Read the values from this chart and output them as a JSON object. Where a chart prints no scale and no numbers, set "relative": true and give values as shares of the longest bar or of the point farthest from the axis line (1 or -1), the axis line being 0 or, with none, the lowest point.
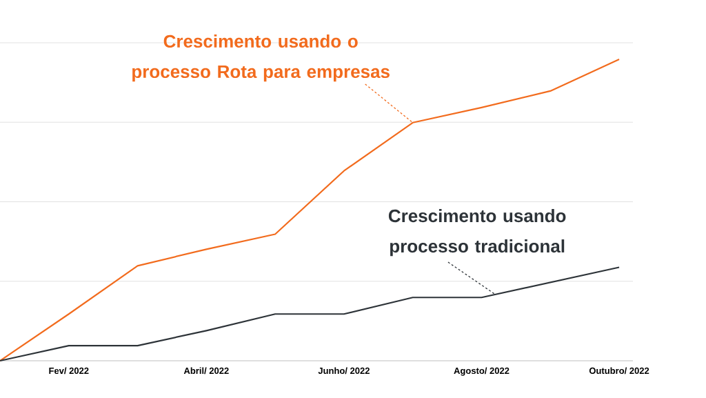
{
  "chart_data": {
    "type": "line",
    "relative": true,
    "grid": "y",
    "categories": [
      null,
      "Fev/ 2022",
      null,
      "Abril/ 2022",
      null,
      "Junho/ 2022",
      null,
      "Agosto/ 2022",
      null,
      "Outubro/ 2022"
    ],
    "series": [
      {
        "name": "Crescimento usando o processo Rota para empresas",
        "color": "#f26b1d",
        "values": [
          0,
          0.155,
          0.315,
          0.37,
          0.42,
          0.63,
          0.79,
          0.84,
          0.895,
          1
        ]
      },
      {
        "name": "Crescimento usando processo tradicional",
        "color": "#2d3338",
        "values": [
          0,
          0.05,
          0.05,
          0.1,
          0.155,
          0.155,
          0.21,
          0.21,
          0.26,
          0.31
        ]
      }
    ]
  }
}
